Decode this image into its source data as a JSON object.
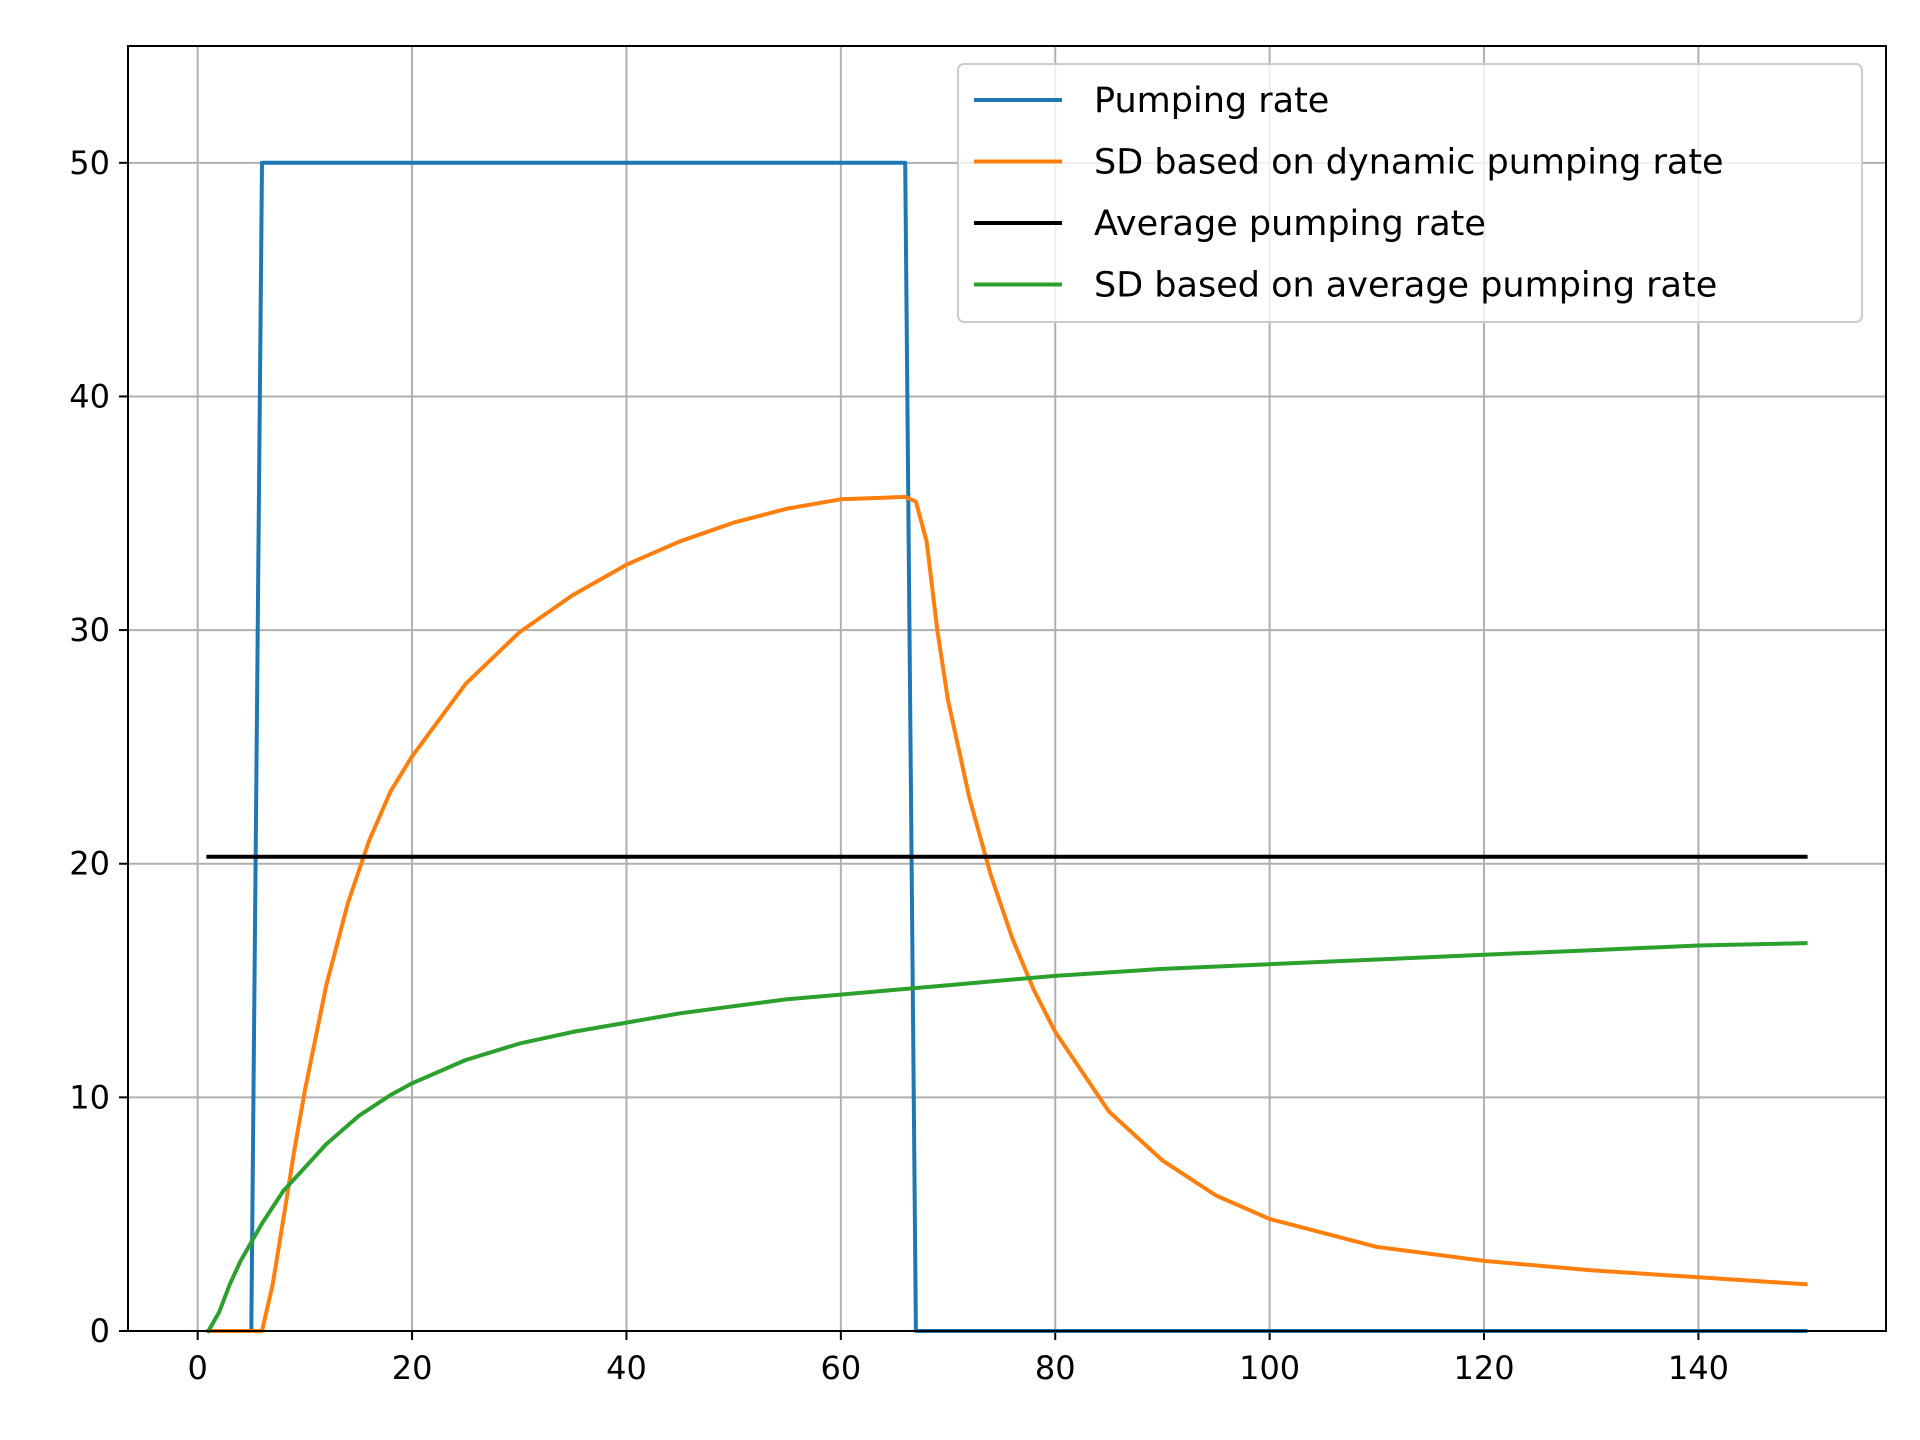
{
  "chart_data": {
    "type": "line",
    "title": "",
    "xlabel": "",
    "ylabel": "",
    "xlim": [
      -6.5,
      157.5
    ],
    "ylim": [
      0,
      55
    ],
    "xticks": [
      0,
      20,
      40,
      60,
      80,
      100,
      120,
      140
    ],
    "yticks": [
      0,
      10,
      20,
      30,
      40,
      50
    ],
    "grid": true,
    "legend_position": "top-right",
    "series": [
      {
        "name": "Pumping rate",
        "color": "#1f77b4",
        "x": [
          1,
          5,
          6,
          66,
          67,
          150
        ],
        "y": [
          0,
          0,
          50,
          50,
          0,
          0
        ]
      },
      {
        "name": "SD based on dynamic pumping rate",
        "color": "#ff7f0e",
        "x": [
          1,
          6,
          7,
          8,
          9,
          10,
          12,
          14,
          16,
          18,
          20,
          25,
          30,
          35,
          40,
          45,
          50,
          55,
          60,
          66,
          67,
          68,
          69,
          70,
          72,
          74,
          76,
          78,
          80,
          85,
          90,
          95,
          100,
          110,
          120,
          130,
          140,
          150
        ],
        "y": [
          0,
          0,
          2,
          4.8,
          7.7,
          10.3,
          14.8,
          18.3,
          21.0,
          23.1,
          24.6,
          27.7,
          29.9,
          31.5,
          32.8,
          33.8,
          34.6,
          35.2,
          35.6,
          35.7,
          35.5,
          33.8,
          30.0,
          27.0,
          22.8,
          19.5,
          16.8,
          14.6,
          12.8,
          9.4,
          7.3,
          5.8,
          4.8,
          3.6,
          3.0,
          2.6,
          2.3,
          2.0
        ]
      },
      {
        "name": "Average pumping rate",
        "color": "#000000",
        "x": [
          1,
          150
        ],
        "y": [
          20.3,
          20.3
        ]
      },
      {
        "name": "SD based on average pumping rate",
        "color": "#2ca02c",
        "x": [
          1,
          2,
          3,
          4,
          5,
          6,
          8,
          10,
          12,
          15,
          18,
          20,
          25,
          30,
          35,
          40,
          45,
          50,
          55,
          60,
          65,
          70,
          75,
          80,
          90,
          100,
          110,
          120,
          130,
          140,
          150
        ],
        "y": [
          0,
          0.8,
          2.0,
          3.0,
          3.8,
          4.6,
          6.0,
          7.0,
          8.0,
          9.2,
          10.1,
          10.6,
          11.6,
          12.3,
          12.8,
          13.2,
          13.6,
          13.9,
          14.2,
          14.4,
          14.6,
          14.8,
          15.0,
          15.2,
          15.5,
          15.7,
          15.9,
          16.1,
          16.3,
          16.5,
          16.6
        ]
      }
    ]
  }
}
